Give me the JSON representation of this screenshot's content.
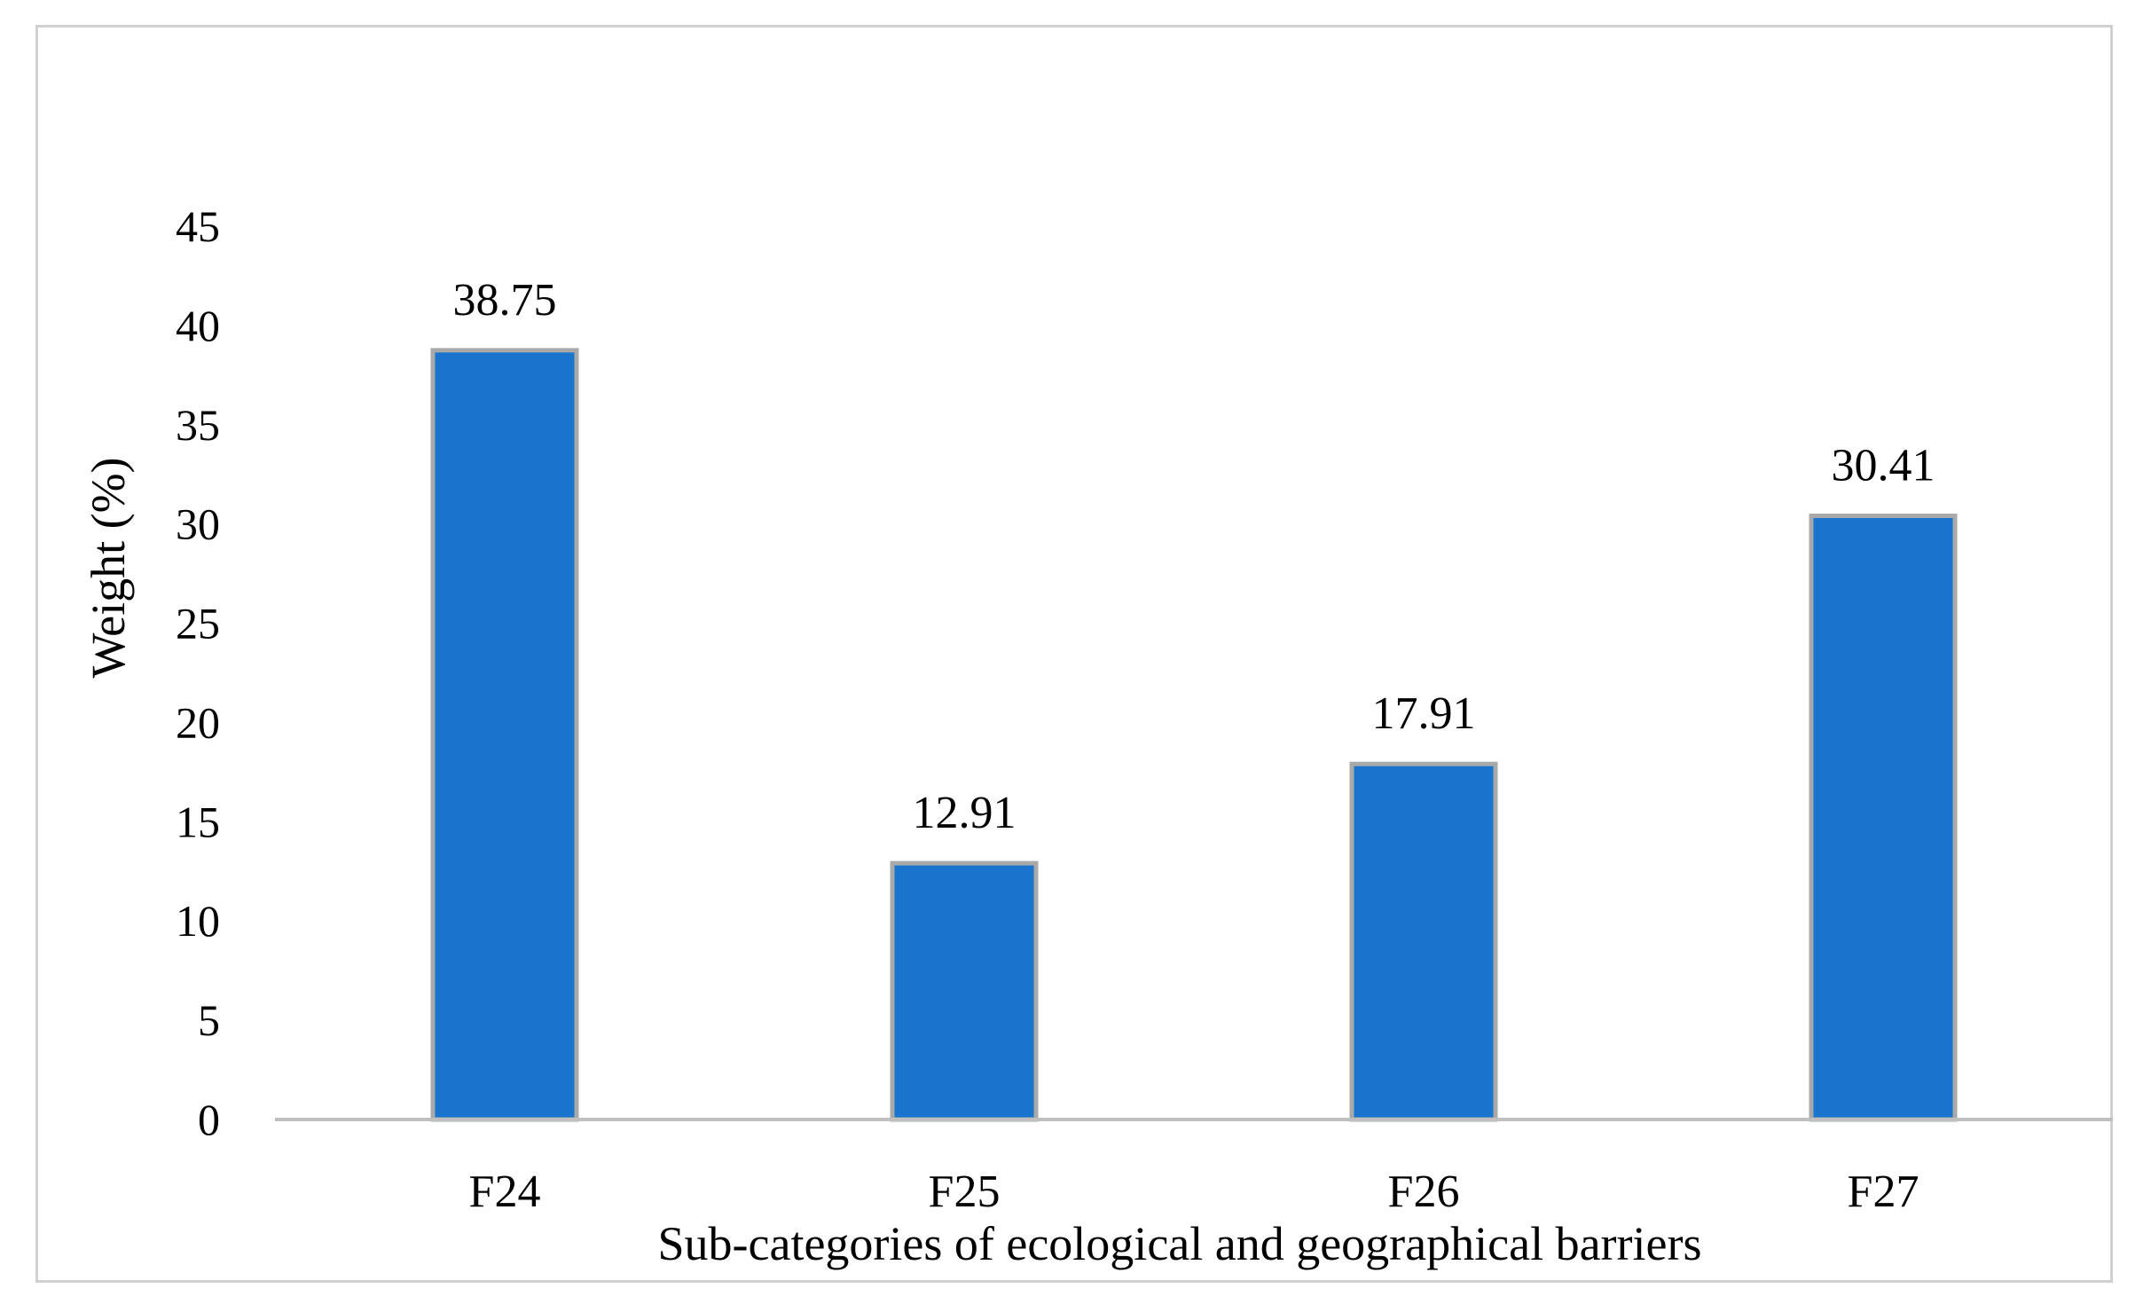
{
  "chart_data": {
    "type": "bar",
    "categories": [
      "F24",
      "F25",
      "F26",
      "F27"
    ],
    "values": [
      38.75,
      12.91,
      17.91,
      30.41
    ],
    "data_labels": [
      "38.75",
      "12.91",
      "17.91",
      "30.41"
    ],
    "title": "",
    "xlabel": "Sub-categories of ecological and geographical barriers",
    "ylabel": "Weight (%)",
    "ylim": [
      0,
      45
    ],
    "yticks": [
      "0",
      "5",
      "10",
      "15",
      "20",
      "25",
      "30",
      "35",
      "40",
      "45"
    ],
    "grid": false,
    "legend": "none",
    "bar_color": "#1874CD",
    "bar_edge_color": "#A9A9A9",
    "axis_color": "#BFBFBF"
  }
}
